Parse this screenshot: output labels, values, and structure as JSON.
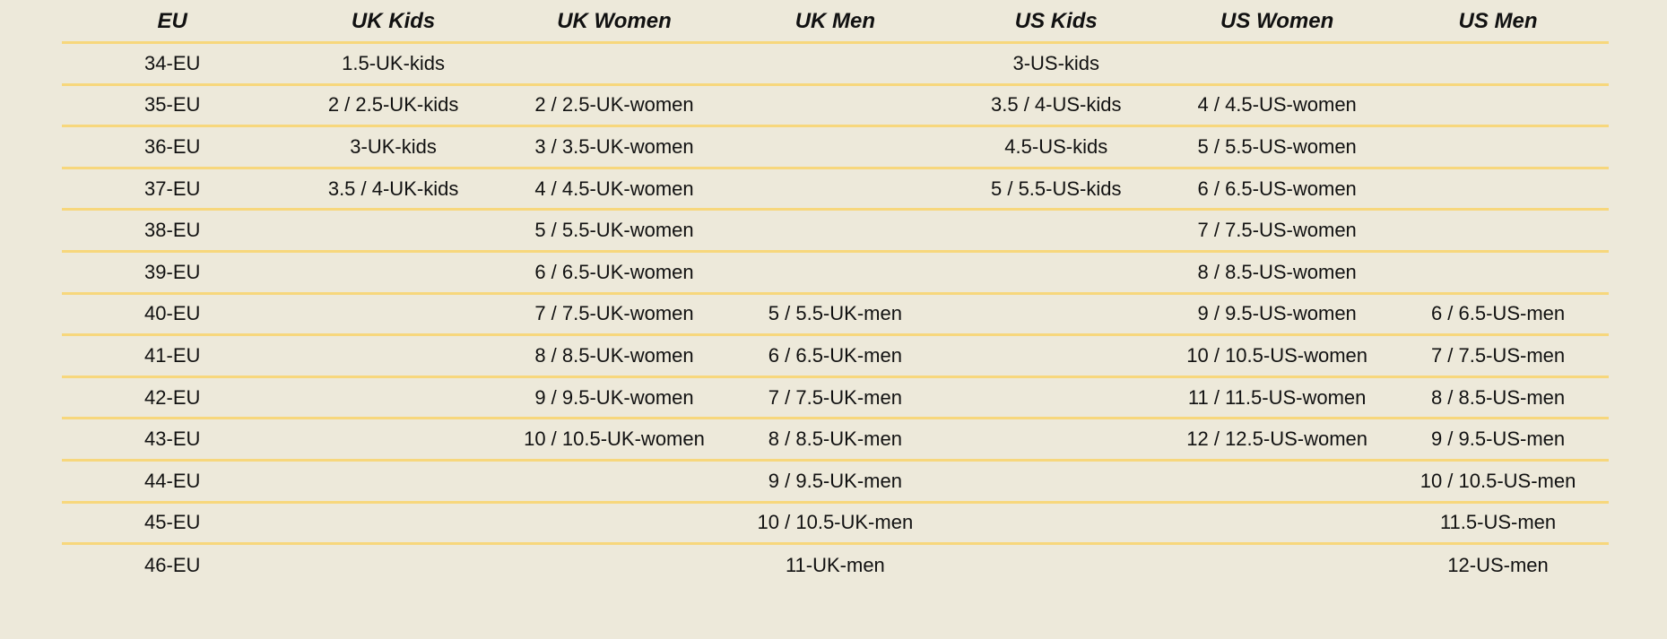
{
  "headers": [
    "EU",
    "UK Kids",
    "UK Women",
    "UK Men",
    "US Kids",
    "US Women",
    "US Men"
  ],
  "rows": [
    [
      "34-EU",
      "1.5-UK-kids",
      "",
      "",
      "3-US-kids",
      "",
      ""
    ],
    [
      "35-EU",
      "2 / 2.5-UK-kids",
      "2 / 2.5-UK-women",
      "",
      "3.5 / 4-US-kids",
      "4 / 4.5-US-women",
      ""
    ],
    [
      "36-EU",
      "3-UK-kids",
      "3 / 3.5-UK-women",
      "",
      "4.5-US-kids",
      "5 / 5.5-US-women",
      ""
    ],
    [
      "37-EU",
      "3.5 / 4-UK-kids",
      "4 / 4.5-UK-women",
      "",
      "5 / 5.5-US-kids",
      "6 / 6.5-US-women",
      ""
    ],
    [
      "38-EU",
      "",
      "5 / 5.5-UK-women",
      "",
      "",
      "7 / 7.5-US-women",
      ""
    ],
    [
      "39-EU",
      "",
      "6 / 6.5-UK-women",
      "",
      "",
      "8 / 8.5-US-women",
      ""
    ],
    [
      "40-EU",
      "",
      "7 / 7.5-UK-women",
      "5 / 5.5-UK-men",
      "",
      "9 / 9.5-US-women",
      "6 / 6.5-US-men"
    ],
    [
      "41-EU",
      "",
      "8 / 8.5-UK-women",
      "6 / 6.5-UK-men",
      "",
      "10 / 10.5-US-women",
      "7 / 7.5-US-men"
    ],
    [
      "42-EU",
      "",
      "9 / 9.5-UK-women",
      "7 / 7.5-UK-men",
      "",
      "11 / 11.5-US-women",
      "8 / 8.5-US-men"
    ],
    [
      "43-EU",
      "",
      "10 / 10.5-UK-women",
      "8 / 8.5-UK-men",
      "",
      "12 / 12.5-US-women",
      "9 / 9.5-US-men"
    ],
    [
      "44-EU",
      "",
      "",
      "9 / 9.5-UK-men",
      "",
      "",
      "10 / 10.5-US-men"
    ],
    [
      "45-EU",
      "",
      "",
      "10 / 10.5-UK-men",
      "",
      "",
      "11.5-US-men"
    ],
    [
      "46-EU",
      "",
      "",
      "11-UK-men",
      "",
      "",
      "12-US-men"
    ]
  ],
  "colors": {
    "background": "#ede9da",
    "rule": "#f7d77c"
  }
}
